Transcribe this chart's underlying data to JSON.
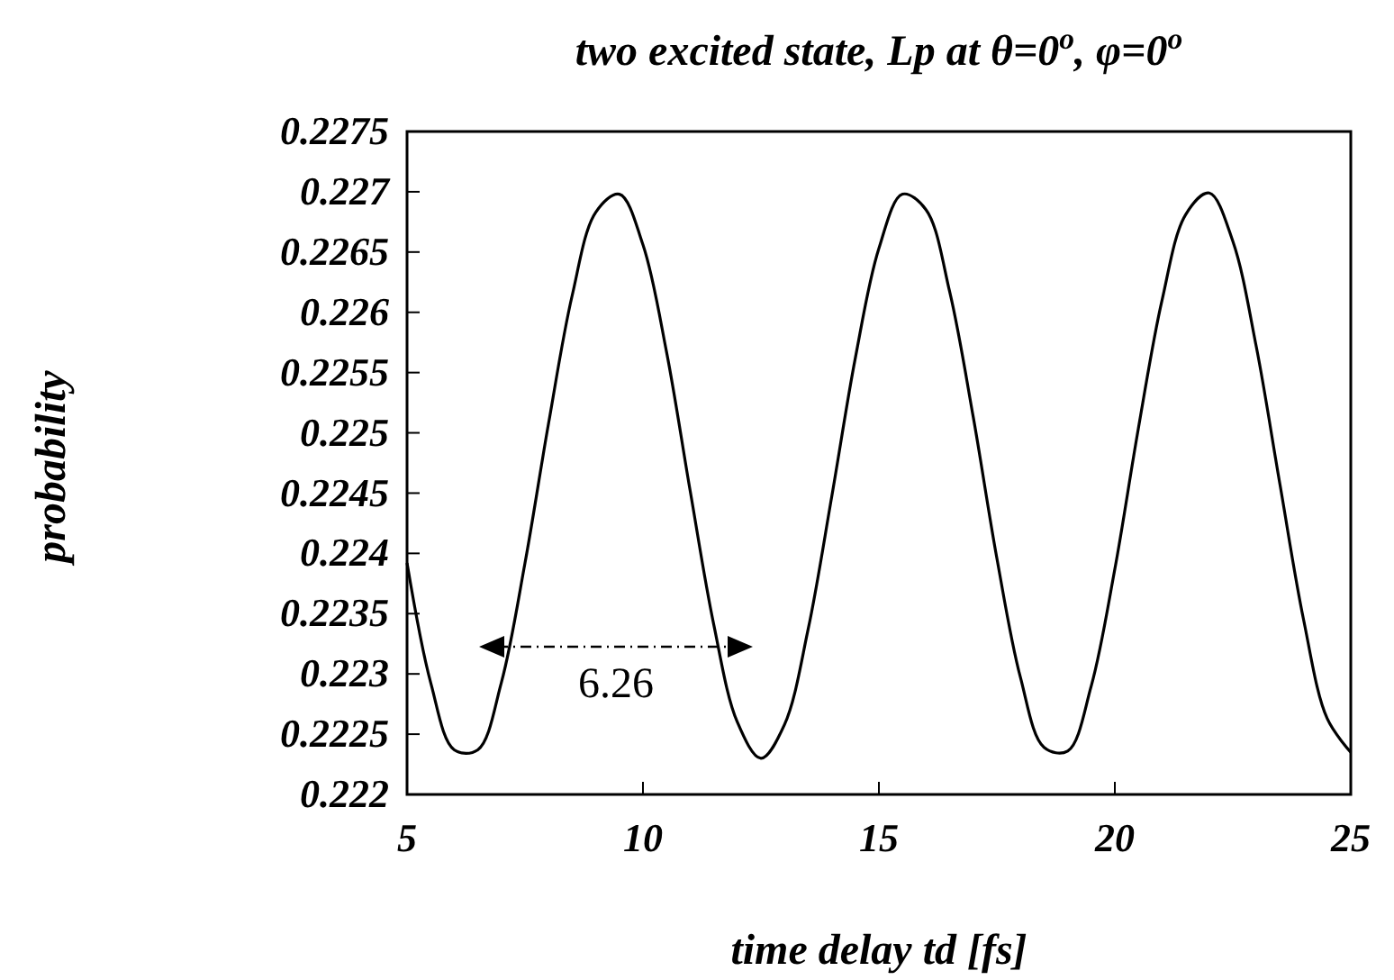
{
  "chart_data": {
    "type": "line",
    "title": "two excited state, Lp at θ=0$^{o}$, φ=0$^{o}$",
    "xlabel": "time delay td [fs]",
    "ylabel": "probability",
    "x": [
      5,
      5.5,
      6,
      6.5,
      7,
      7.5,
      8,
      8.5,
      9,
      9.5,
      10,
      10.5,
      11,
      11.5,
      12,
      12.5,
      13,
      13.5,
      14,
      14.5,
      15,
      15.5,
      16,
      16.5,
      17,
      17.5,
      18,
      18.5,
      19,
      19.5,
      20,
      20.5,
      21,
      21.5,
      22,
      22.5,
      23,
      23.5,
      24,
      24.5,
      25
    ],
    "series": [
      {
        "color": "#000000",
        "values": [
          0.22392,
          0.22293,
          0.22237,
          0.22237,
          0.22293,
          0.22392,
          0.22508,
          0.22614,
          0.22683,
          0.22698,
          0.22656,
          0.22567,
          0.22452,
          0.22341,
          0.2226,
          0.2223,
          0.22258,
          0.22337,
          0.22447,
          0.22562,
          0.22653,
          0.22698,
          0.22685,
          0.22617,
          0.22513,
          0.22396,
          0.22297,
          0.22239,
          0.22236,
          0.2229,
          0.22387,
          0.22504,
          0.2261,
          0.22681,
          0.22699,
          0.22659,
          0.22571,
          0.22457,
          0.22345,
          0.22263,
          0.22235
        ]
      }
    ],
    "xlim": [
      5,
      25
    ],
    "xticks": [
      5,
      10,
      15,
      20,
      25
    ],
    "ylim": [
      0.222,
      0.2275
    ],
    "yticks": [
      0.222,
      0.2225,
      0.223,
      0.2235,
      0.224,
      0.2245,
      0.225,
      0.2255,
      0.226,
      0.2265,
      0.227,
      0.2275
    ],
    "annotations": [
      "6.26"
    ],
    "grid": false,
    "marker": "none",
    "line_style": "solid"
  }
}
